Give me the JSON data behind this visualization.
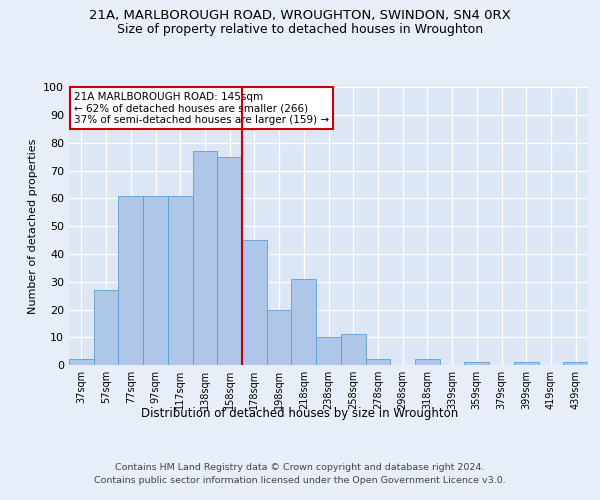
{
  "title1": "21A, MARLBOROUGH ROAD, WROUGHTON, SWINDON, SN4 0RX",
  "title2": "Size of property relative to detached houses in Wroughton",
  "xlabel": "Distribution of detached houses by size in Wroughton",
  "ylabel": "Number of detached properties",
  "bar_labels": [
    "37sqm",
    "57sqm",
    "77sqm",
    "97sqm",
    "117sqm",
    "138sqm",
    "158sqm",
    "178sqm",
    "198sqm",
    "218sqm",
    "238sqm",
    "258sqm",
    "278sqm",
    "298sqm",
    "318sqm",
    "339sqm",
    "359sqm",
    "379sqm",
    "399sqm",
    "419sqm",
    "439sqm"
  ],
  "bar_heights": [
    2,
    27,
    61,
    61,
    61,
    77,
    75,
    45,
    20,
    31,
    10,
    11,
    2,
    0,
    2,
    0,
    1,
    0,
    1,
    0,
    1
  ],
  "bar_color": "#aec6e8",
  "bar_edge_color": "#5a9fd4",
  "background_color": "#e8eef7",
  "plot_bg_color": "#dce6f5",
  "vline_x": 6.5,
  "vline_color": "#cc0000",
  "annotation_line1": "21A MARLBOROUGH ROAD: 145sqm",
  "annotation_line2": "← 62% of detached houses are smaller (266)",
  "annotation_line3": "37% of semi-detached houses are larger (159) →",
  "annotation_box_color": "#cc0000",
  "ylim": [
    0,
    100
  ],
  "yticks": [
    0,
    10,
    20,
    30,
    40,
    50,
    60,
    70,
    80,
    90,
    100
  ],
  "footnote1": "Contains HM Land Registry data © Crown copyright and database right 2024.",
  "footnote2": "Contains public sector information licensed under the Open Government Licence v3.0."
}
